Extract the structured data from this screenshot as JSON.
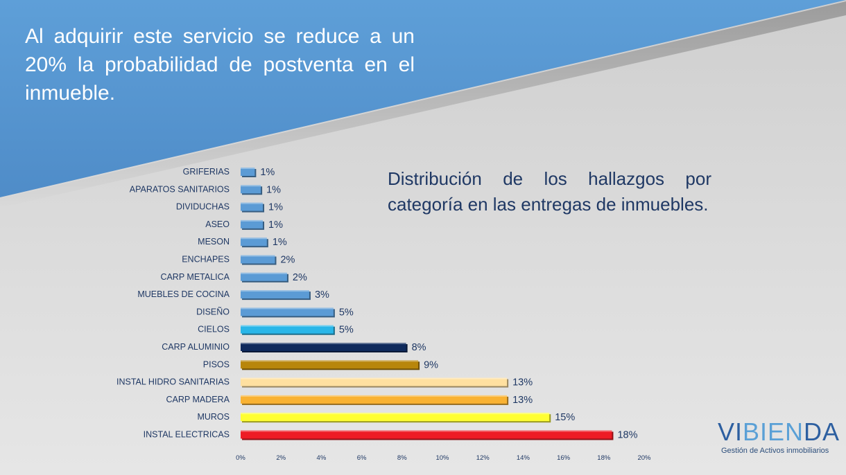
{
  "header": {
    "headline": "Al adquirir este servicio se reduce a un 20% la probabilidad de postventa en el inmueble."
  },
  "chart_subtitle": "Distribución de los hallazgos por categoría en las entregas de inmuebles.",
  "logo": {
    "word_part1": "VI",
    "word_part2": "BIEN",
    "word_part3": "DA",
    "tagline": "Gestión de Activos inmobiliarios"
  },
  "colors": {
    "banner": "#5b9bd5",
    "text_dark": "#1f3864",
    "logo_dark": "#2d5fa0",
    "logo_light": "#5aa0d6"
  },
  "chart_data": {
    "type": "bar",
    "orientation": "horizontal",
    "categories": [
      "GRIFERIAS",
      "APARATOS SANITARIOS",
      "DIVIDUCHAS",
      "ASEO",
      "MESON",
      "ENCHAPES",
      "CARP METALICA",
      "MUEBLES DE COCINA",
      "DISEÑO",
      "CIELOS",
      "CARP ALUMINIO",
      "PISOS",
      "INSTAL HIDRO SANITARIAS",
      "CARP MADERA",
      "MUROS",
      "INSTAL ELECTRICAS"
    ],
    "values": [
      0.7,
      1.0,
      1.1,
      1.1,
      1.3,
      1.7,
      2.3,
      3.4,
      4.6,
      4.6,
      8.2,
      8.8,
      13.2,
      13.2,
      15.3,
      18.4
    ],
    "value_labels": [
      "1%",
      "1%",
      "1%",
      "1%",
      "1%",
      "2%",
      "2%",
      "3%",
      "5%",
      "5%",
      "8%",
      "9%",
      "13%",
      "13%",
      "15%",
      "18%"
    ],
    "bar_colors": [
      "#5b9bd5",
      "#5b9bd5",
      "#5b9bd5",
      "#5b9bd5",
      "#5b9bd5",
      "#5b9bd5",
      "#5b9bd5",
      "#5b9bd5",
      "#5b9bd5",
      "#29b6e8",
      "#0f2a5c",
      "#b8860b",
      "#ffe0a0",
      "#f9b233",
      "#ffff33",
      "#ee1c25"
    ],
    "x_ticks": [
      "0%",
      "2%",
      "4%",
      "6%",
      "8%",
      "10%",
      "12%",
      "14%",
      "16%",
      "18%",
      "20%"
    ],
    "xlim": [
      0,
      20
    ],
    "grid": false,
    "legend": "none"
  }
}
